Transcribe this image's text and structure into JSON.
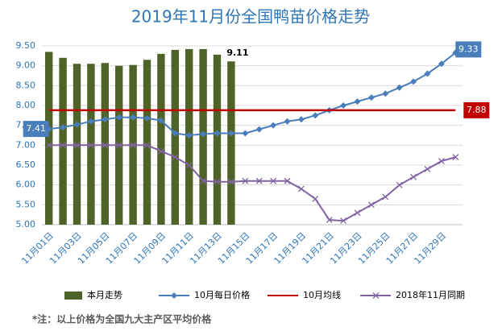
{
  "chart_data": {
    "type": "bar_line",
    "title": "2019年11月份全国鸭苗价格走势",
    "note": "*注：以上价格为全国九大主产区平均价格",
    "categories": [
      "11月01日",
      null,
      "11月03日",
      null,
      "11月05日",
      null,
      "11月07日",
      null,
      "11月09日",
      null,
      "11月11日",
      null,
      "11月13日",
      null,
      "11月15日",
      null,
      "11月17日",
      null,
      "11月19日",
      null,
      "11月21日",
      null,
      "11月23日",
      null,
      "11月25日",
      null,
      "11月27日",
      null,
      "11月29日",
      null
    ],
    "ylim": [
      5.0,
      9.5
    ],
    "yticks": [
      {
        "value": 5.0,
        "label": "5.00"
      },
      {
        "value": 5.5,
        "label": "5.50"
      },
      {
        "value": 6.0,
        "label": "6.00"
      },
      {
        "value": 6.5,
        "label": "6.50"
      },
      {
        "value": 7.0,
        "label": "7.00"
      },
      {
        "value": 7.5,
        "label": "7.50"
      },
      {
        "value": 8.0,
        "label": "8.00"
      },
      {
        "value": 8.5,
        "label": "8.50"
      },
      {
        "value": 9.0,
        "label": "9.00"
      },
      {
        "value": 9.5,
        "label": "9.50"
      }
    ],
    "grid": true,
    "legend": "bottom",
    "series": [
      {
        "name": "本月走势",
        "type": "bar",
        "color": "#4f6228",
        "values": [
          9.35,
          9.2,
          9.05,
          9.05,
          9.07,
          9.0,
          9.02,
          9.15,
          9.3,
          9.4,
          9.42,
          9.42,
          9.28,
          9.11,
          null,
          null,
          null,
          null,
          null,
          null,
          null,
          null,
          null,
          null,
          null,
          null,
          null,
          null,
          null,
          null
        ]
      },
      {
        "name": "10月每日价格",
        "type": "line",
        "marker": "diamond",
        "color": "#4a7ebb",
        "values": [
          7.41,
          7.45,
          7.52,
          7.6,
          7.65,
          7.7,
          7.7,
          7.68,
          7.62,
          7.3,
          7.25,
          7.28,
          7.3,
          7.3,
          7.3,
          7.4,
          7.5,
          7.6,
          7.65,
          7.75,
          7.88,
          8.0,
          8.1,
          8.2,
          8.3,
          8.45,
          8.6,
          8.8,
          9.05,
          9.33
        ]
      },
      {
        "name": "10月均线",
        "type": "line",
        "marker": "none",
        "color": "#c00000",
        "values": [
          7.88,
          7.88,
          7.88,
          7.88,
          7.88,
          7.88,
          7.88,
          7.88,
          7.88,
          7.88,
          7.88,
          7.88,
          7.88,
          7.88,
          7.88,
          7.88,
          7.88,
          7.88,
          7.88,
          7.88,
          7.88,
          7.88,
          7.88,
          7.88,
          7.88,
          7.88,
          7.88,
          7.88,
          7.88,
          7.88
        ]
      },
      {
        "name": "2018年11月同期",
        "type": "line",
        "marker": "x",
        "color": "#8064a2",
        "values": [
          7.0,
          7.0,
          7.0,
          7.0,
          7.0,
          7.0,
          7.0,
          7.0,
          6.85,
          6.7,
          6.5,
          6.1,
          6.08,
          6.08,
          6.1,
          6.1,
          6.1,
          6.1,
          5.9,
          5.65,
          5.12,
          5.1,
          5.3,
          5.5,
          5.7,
          6.0,
          6.2,
          6.4,
          6.6,
          6.7
        ]
      }
    ]
  }
}
